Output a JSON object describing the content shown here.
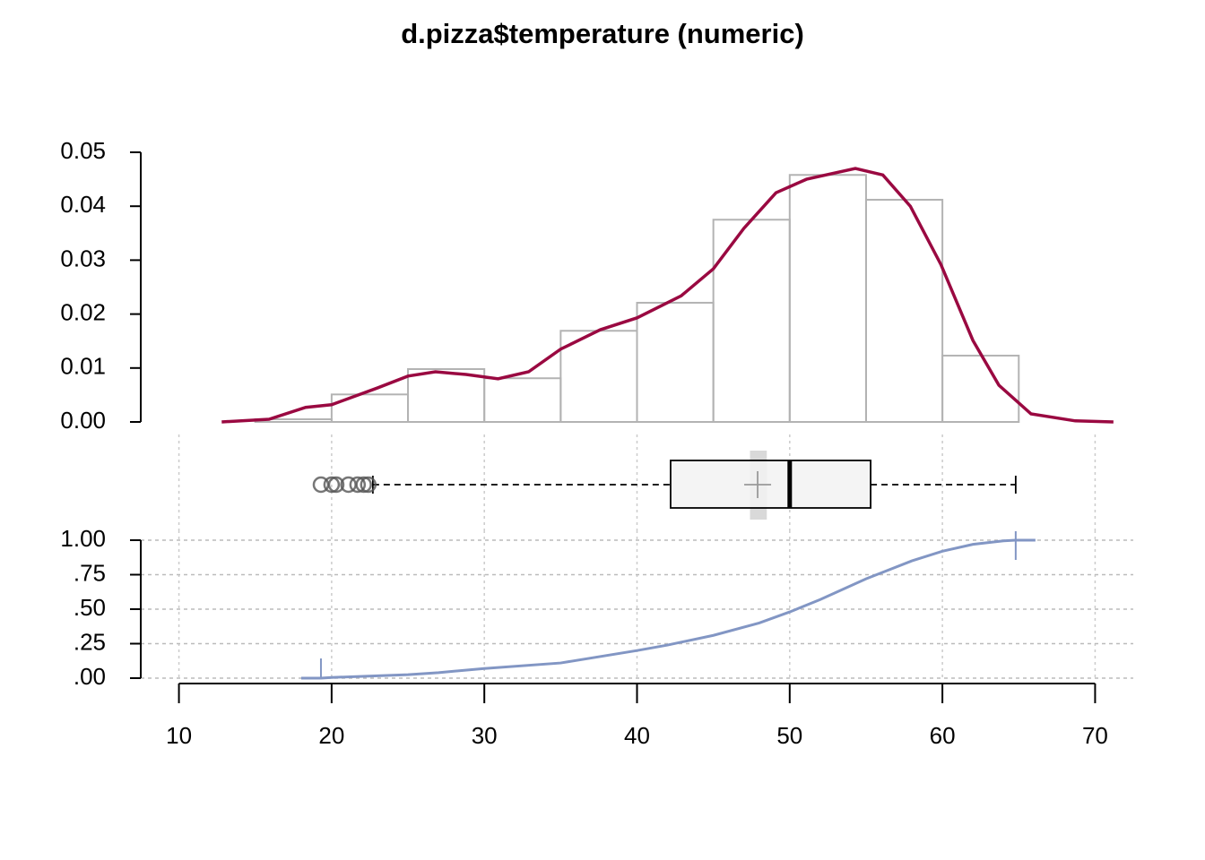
{
  "chart_data": [
    {
      "type": "histogram",
      "title": "d.pizza$temperature (numeric)",
      "bins": [
        15,
        20,
        25,
        30,
        35,
        40,
        45,
        50,
        55,
        60,
        65
      ],
      "values": [
        0.0005,
        0.0051,
        0.0098,
        0.0081,
        0.0169,
        0.0221,
        0.0375,
        0.0458,
        0.0412,
        0.0123
      ],
      "color": "#b3b3b3",
      "density": {
        "x": [
          12.8,
          15.9,
          18.3,
          20.0,
          23.0,
          25.0,
          26.8,
          28.8,
          30.9,
          32.9,
          35.0,
          37.6,
          40.0,
          42.9,
          45.0,
          47.0,
          49.1,
          51.1,
          54.3,
          56.1,
          57.9,
          59.9,
          62.0,
          63.7,
          65.8,
          68.7,
          71.2
        ],
        "values": [
          0,
          0.0005,
          0.0027,
          0.0032,
          0.0063,
          0.0085,
          0.0093,
          0.0088,
          0.008,
          0.0093,
          0.0135,
          0.0171,
          0.0193,
          0.0234,
          0.0284,
          0.0359,
          0.0425,
          0.045,
          0.047,
          0.0458,
          0.04,
          0.0292,
          0.0151,
          0.0068,
          0.0015,
          0.0002,
          0
        ],
        "color": "#9a0941"
      },
      "xlim": [
        7.5,
        72.5
      ],
      "ylim": [
        0,
        0.05
      ],
      "yticks": [
        {
          "value": 0,
          "label": "0.00"
        },
        0.01,
        0.02,
        0.03,
        0.04,
        0.05
      ]
    },
    {
      "type": "box",
      "min": 22.7,
      "q1": 42.2,
      "median": 50.0,
      "q3": 55.3,
      "max": 64.8,
      "mean": 47.9,
      "mean_ci": [
        47.4,
        48.5
      ],
      "outliers": [
        19.3,
        20.0,
        20.3,
        21.1,
        21.7,
        22.1,
        22.4
      ],
      "color": "#f2f2f2",
      "xlim": [
        7.5,
        72.5
      ],
      "xticks": [
        10,
        20,
        30,
        40,
        50,
        60,
        70
      ],
      "grid": true
    },
    {
      "type": "ecdf",
      "x": [
        19.3,
        20,
        25,
        27,
        30,
        35,
        40,
        42,
        45,
        48,
        50,
        52,
        55,
        58,
        60,
        62,
        64,
        64.8
      ],
      "values": [
        0,
        0.005,
        0.025,
        0.04,
        0.07,
        0.11,
        0.2,
        0.24,
        0.31,
        0.4,
        0.48,
        0.57,
        0.72,
        0.85,
        0.92,
        0.97,
        0.995,
        1
      ],
      "color": "#8296c4",
      "xlim": [
        7.5,
        72.5
      ],
      "ylim": [
        0,
        1
      ],
      "yticks": [
        {
          "value": 0,
          "label": ".00"
        },
        {
          "value": 0.25,
          "label": ".25"
        },
        {
          "value": 0.5,
          "label": ".50"
        },
        {
          "value": 0.75,
          "label": ".75"
        },
        {
          "value": 1,
          "label": "1.00"
        }
      ],
      "xticks": [
        10,
        20,
        30,
        40,
        50,
        60,
        70
      ],
      "grid": true
    }
  ]
}
